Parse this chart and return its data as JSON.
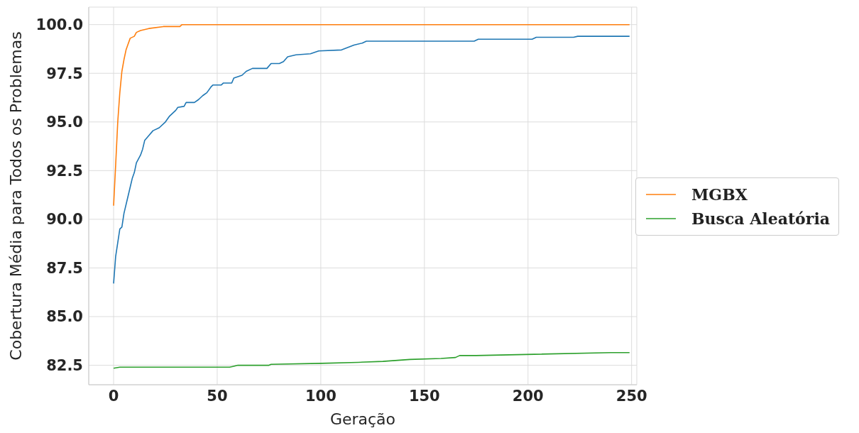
{
  "chart_data": {
    "type": "line",
    "xlabel": "Geração",
    "ylabel": "Cobertura Média para Todos os Problemas",
    "xlim": [
      -12,
      252.5
    ],
    "ylim": [
      81.5,
      100.9
    ],
    "xticks": [
      0,
      50,
      100,
      150,
      200,
      250
    ],
    "yticks": [
      {
        "value": 82.5,
        "label": "82.5"
      },
      {
        "value": 85,
        "label": "85.0"
      },
      {
        "value": 87.5,
        "label": "87.5"
      },
      {
        "value": 90,
        "label": "90.0"
      },
      {
        "value": 92.5,
        "label": "92.5"
      },
      {
        "value": 95,
        "label": "95.0"
      },
      {
        "value": 97.5,
        "label": "97.5"
      },
      {
        "value": 100,
        "label": "100.0"
      }
    ],
    "grid": true,
    "legend": "right",
    "marker": "none",
    "line_style": "solid",
    "series": [
      {
        "color": "#1f77b4",
        "x": [
          0,
          1,
          2,
          3,
          4,
          5,
          7,
          9,
          10,
          11,
          13,
          14,
          15,
          17,
          19,
          22,
          25,
          27,
          30,
          31,
          34,
          35,
          39,
          41,
          43,
          45,
          47,
          48,
          52,
          53,
          57,
          58,
          62,
          64,
          67,
          74,
          76,
          80,
          82,
          84,
          88,
          95,
          99,
          110,
          116,
          120,
          122,
          174,
          176,
          202,
          204,
          222,
          224,
          249
        ],
        "values": [
          86.7,
          88.1,
          88.8,
          89.5,
          89.6,
          90.3,
          91.2,
          92.1,
          92.4,
          92.9,
          93.3,
          93.6,
          94.05,
          94.3,
          94.55,
          94.7,
          95.0,
          95.3,
          95.6,
          95.75,
          95.8,
          96.0,
          96.0,
          96.15,
          96.35,
          96.5,
          96.8,
          96.9,
          96.9,
          97.0,
          97.0,
          97.25,
          97.4,
          97.6,
          97.75,
          97.75,
          98.0,
          98.0,
          98.1,
          98.35,
          98.45,
          98.5,
          98.65,
          98.7,
          98.95,
          99.05,
          99.15,
          99.15,
          99.25,
          99.25,
          99.35,
          99.35,
          99.4,
          99.4
        ]
      },
      {
        "name": "MGBX",
        "color": "#ff7f0e",
        "x": [
          0,
          1,
          2,
          3,
          4,
          5,
          6,
          7,
          8,
          10,
          11,
          13,
          17,
          24,
          32,
          33,
          249
        ],
        "values": [
          90.7,
          92.8,
          95.0,
          96.5,
          97.6,
          98.2,
          98.7,
          99.0,
          99.3,
          99.4,
          99.6,
          99.7,
          99.8,
          99.9,
          99.9,
          100,
          100
        ]
      },
      {
        "name": "Busca Aleatória",
        "color": "#2ca02c",
        "x": [
          0,
          3,
          56,
          58,
          60,
          75,
          76,
          100,
          118,
          130,
          143,
          158,
          165,
          167,
          175,
          240,
          249
        ],
        "values": [
          82.35,
          82.4,
          82.4,
          82.45,
          82.5,
          82.5,
          82.55,
          82.6,
          82.65,
          82.7,
          82.8,
          82.85,
          82.9,
          83.0,
          83.0,
          83.15,
          83.15
        ]
      }
    ]
  }
}
